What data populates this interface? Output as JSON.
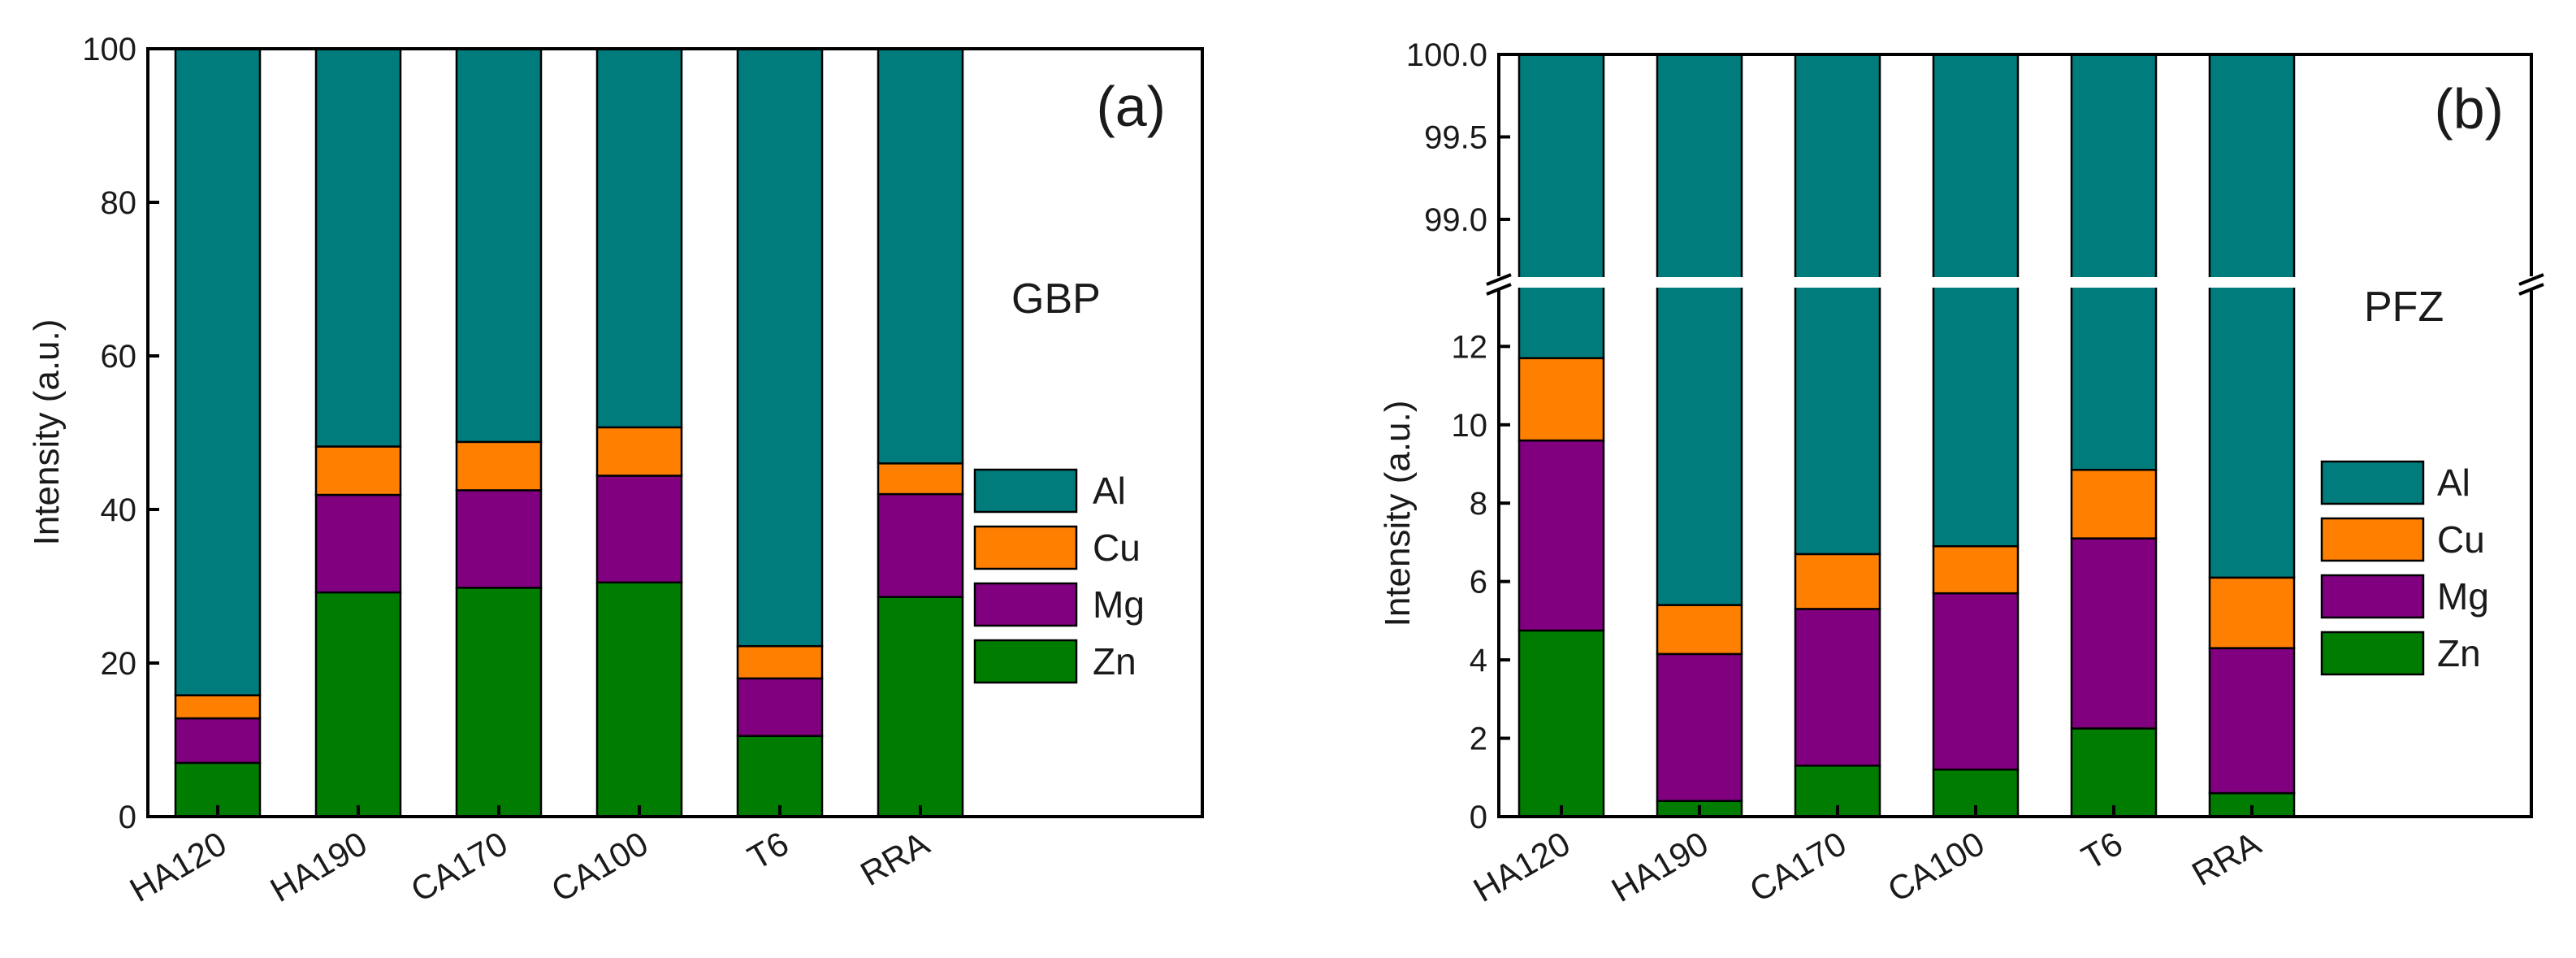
{
  "colors": {
    "Al": "#007c7c",
    "Cu": "#ff8000",
    "Mg": "#800080",
    "Zn": "#007d00"
  },
  "chart_data": [
    {
      "type": "bar",
      "stacked": true,
      "panel_label": "(a)",
      "region_label": "GBP",
      "title": "",
      "xlabel": "",
      "ylabel": "Intensity (a.u.)",
      "ylim": [
        0,
        100
      ],
      "yticks": [
        "0",
        "20",
        "40",
        "60",
        "80",
        "100"
      ],
      "categories": [
        "HA120",
        "HA190",
        "CA170",
        "CA100",
        "T6",
        "RRA"
      ],
      "legend": [
        "Al",
        "Cu",
        "Mg",
        "Zn"
      ],
      "legend_position": "center-right",
      "series": [
        {
          "name": "Zn",
          "values": [
            7.0,
            29.2,
            29.8,
            30.5,
            10.5,
            28.6
          ]
        },
        {
          "name": "Mg",
          "values": [
            5.8,
            12.7,
            12.7,
            13.9,
            7.5,
            13.4
          ]
        },
        {
          "name": "Cu",
          "values": [
            3.0,
            6.3,
            6.3,
            6.3,
            4.2,
            4.0
          ]
        },
        {
          "name": "Al",
          "values": [
            84.2,
            51.8,
            51.2,
            49.3,
            77.8,
            54.0
          ]
        }
      ]
    },
    {
      "type": "bar",
      "stacked": true,
      "broken_y_axis": true,
      "panel_label": "(b)",
      "region_label": "PFZ",
      "title": "",
      "xlabel": "",
      "ylabel": "Intensity (a.u.)",
      "ylim_lower": [
        0,
        13.5
      ],
      "ylim_upper": [
        98.65,
        100.0
      ],
      "yticks_lower": [
        "0",
        "2",
        "4",
        "6",
        "8",
        "10",
        "12"
      ],
      "yticks_upper": [
        "99.0",
        "99.5",
        "100.0"
      ],
      "categories": [
        "HA120",
        "HA190",
        "CA170",
        "CA100",
        "T6",
        "RRA"
      ],
      "legend": [
        "Al",
        "Cu",
        "Mg",
        "Zn"
      ],
      "legend_position": "center-right",
      "series": [
        {
          "name": "Zn",
          "values": [
            4.75,
            0.4,
            1.3,
            1.2,
            2.25,
            0.6
          ]
        },
        {
          "name": "Mg",
          "values": [
            4.85,
            3.75,
            4.0,
            4.5,
            4.85,
            3.7
          ]
        },
        {
          "name": "Cu",
          "values": [
            2.1,
            1.25,
            1.4,
            1.2,
            1.75,
            1.8
          ]
        },
        {
          "name": "Al",
          "values": [
            88.3,
            94.6,
            93.3,
            93.1,
            91.15,
            93.9
          ]
        }
      ]
    }
  ]
}
